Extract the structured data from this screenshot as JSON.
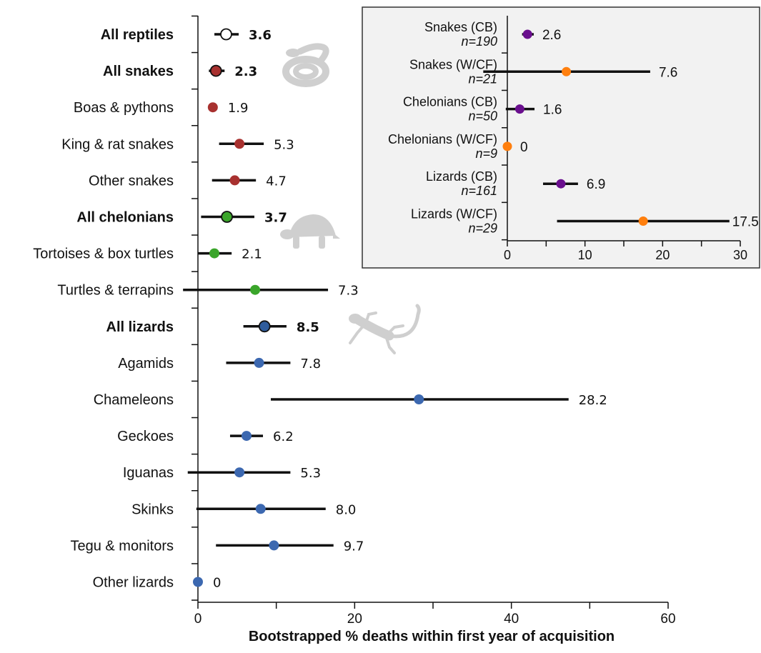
{
  "chart_data": [
    {
      "type": "scatter",
      "subtype": "dot-with-interval",
      "orientation": "horizontal",
      "xlabel": "Bootstrapped % deaths within first year of acquisition",
      "xlim": [
        0,
        60
      ],
      "xticks": [
        0,
        20,
        40,
        60
      ],
      "categories": [
        {
          "label": "All reptiles",
          "bold": true,
          "value": 3.6,
          "value_label": "3.6",
          "ci": [
            2.1,
            5.2
          ],
          "color": "#ffffff"
        },
        {
          "label": "All snakes",
          "bold": true,
          "value": 2.3,
          "value_label": "2.3",
          "ci": [
            1.4,
            3.4
          ],
          "color": "#a8312f"
        },
        {
          "label": "Boas & pythons",
          "bold": false,
          "value": 1.9,
          "value_label": "1.9",
          "ci": [
            1.9,
            1.9
          ],
          "color": "#a8312f"
        },
        {
          "label": "King & rat snakes",
          "bold": false,
          "value": 5.3,
          "value_label": "5.3",
          "ci": [
            2.7,
            8.4
          ],
          "color": "#a8312f"
        },
        {
          "label": "Other snakes",
          "bold": false,
          "value": 4.7,
          "value_label": "4.7",
          "ci": [
            1.8,
            7.4
          ],
          "color": "#a8312f"
        },
        {
          "label": "All chelonians",
          "bold": true,
          "value": 3.7,
          "value_label": "3.7",
          "ci": [
            0.4,
            7.2
          ],
          "color": "#3aa52a"
        },
        {
          "label": "Tortoises & box turtles",
          "bold": false,
          "value": 2.1,
          "value_label": "2.1",
          "ci": [
            0,
            4.3
          ],
          "color": "#3aa52a"
        },
        {
          "label": "Turtles & terrapins",
          "bold": false,
          "value": 7.3,
          "value_label": "7.3",
          "ci": [
            -1.9,
            16.6
          ],
          "color": "#3aa52a"
        },
        {
          "label": "All lizards",
          "bold": true,
          "value": 8.5,
          "value_label": "8.5",
          "ci": [
            5.8,
            11.3
          ],
          "color": "#2f5c9c"
        },
        {
          "label": "Agamids",
          "bold": false,
          "value": 7.8,
          "value_label": "7.8",
          "ci": [
            3.6,
            11.8
          ],
          "color": "#3c68b0"
        },
        {
          "label": "Chameleons",
          "bold": false,
          "value": 28.2,
          "value_label": "28.2",
          "ci": [
            9.3,
            47.3
          ],
          "color": "#3c68b0"
        },
        {
          "label": "Geckoes",
          "bold": false,
          "value": 6.2,
          "value_label": "6.2",
          "ci": [
            4.1,
            8.3
          ],
          "color": "#3c68b0"
        },
        {
          "label": "Iguanas",
          "bold": false,
          "value": 5.3,
          "value_label": "5.3",
          "ci": [
            -1.3,
            11.8
          ],
          "color": "#3c68b0"
        },
        {
          "label": "Skinks",
          "bold": false,
          "value": 8.0,
          "value_label": "8.0",
          "ci": [
            -0.2,
            16.3
          ],
          "color": "#3c68b0"
        },
        {
          "label": "Tegu & monitors",
          "bold": false,
          "value": 9.7,
          "value_label": "9.7",
          "ci": [
            2.3,
            17.3
          ],
          "color": "#3c68b0"
        },
        {
          "label": "Other lizards",
          "bold": false,
          "value": 0,
          "value_label": "0",
          "ci": [
            0,
            0
          ],
          "color": "#3c68b0"
        }
      ],
      "annotations": [
        "snake-silhouette",
        "tortoise-silhouette",
        "gecko-silhouette"
      ]
    },
    {
      "type": "scatter",
      "subtype": "dot-with-interval",
      "orientation": "horizontal",
      "xlim": [
        0,
        30
      ],
      "xticks": [
        0,
        10,
        20,
        30
      ],
      "background": "#f2f2f2",
      "categories": [
        {
          "label": "Snakes (CB)",
          "n": "n=190",
          "value": 2.6,
          "value_label": "2.6",
          "ci": [
            1.9,
            3.4
          ],
          "color": "#6a0f8e"
        },
        {
          "label": "Snakes (W/CF)",
          "n": "n=21",
          "value": 7.6,
          "value_label": "7.6",
          "ci": [
            -3.1,
            18.4
          ],
          "color": "#ff7f0e"
        },
        {
          "label": "Chelonians (CB)",
          "n": "n=50",
          "value": 1.6,
          "value_label": "1.6",
          "ci": [
            -0.2,
            3.5
          ],
          "color": "#6a0f8e"
        },
        {
          "label": "Chelonians (W/CF)",
          "n": "n=9",
          "value": 0,
          "value_label": "0",
          "ci": [
            0,
            0
          ],
          "color": "#ff7f0e"
        },
        {
          "label": "Lizards (CB)",
          "n": "n=161",
          "value": 6.9,
          "value_label": "6.9",
          "ci": [
            4.6,
            9.1
          ],
          "color": "#6a0f8e"
        },
        {
          "label": "Lizards (W/CF)",
          "n": "n=29",
          "value": 17.5,
          "value_label": "17.5",
          "ci": [
            6.4,
            28.6
          ],
          "color": "#ff7f0e"
        }
      ]
    }
  ]
}
